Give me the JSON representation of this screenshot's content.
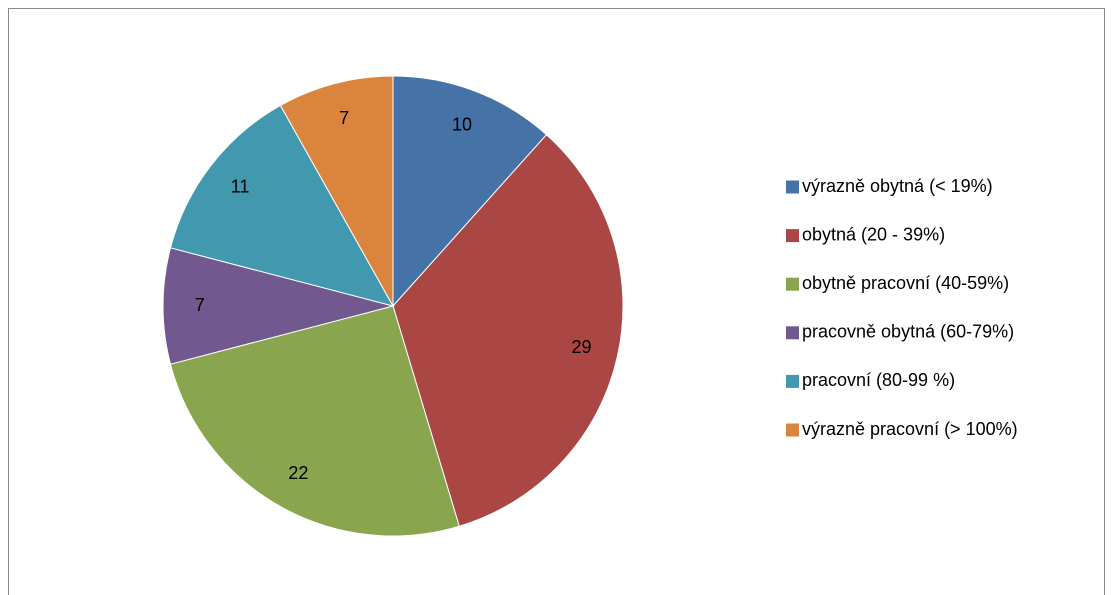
{
  "chart_data": {
    "type": "pie",
    "categories": [
      "výrazně obytná (< 19%)",
      "obytná (20 - 39%)",
      "obytně pracovní (40-59%)",
      "pracovně obytná (60-79%)",
      "pracovní (80-99 %)",
      "výrazně pracovní (> 100%)"
    ],
    "values": [
      10,
      29,
      22,
      7,
      11,
      7
    ],
    "colors": [
      "#4572a7",
      "#aa4643",
      "#89a54e",
      "#71588f",
      "#4198af",
      "#db843d"
    ],
    "legend": "right"
  }
}
